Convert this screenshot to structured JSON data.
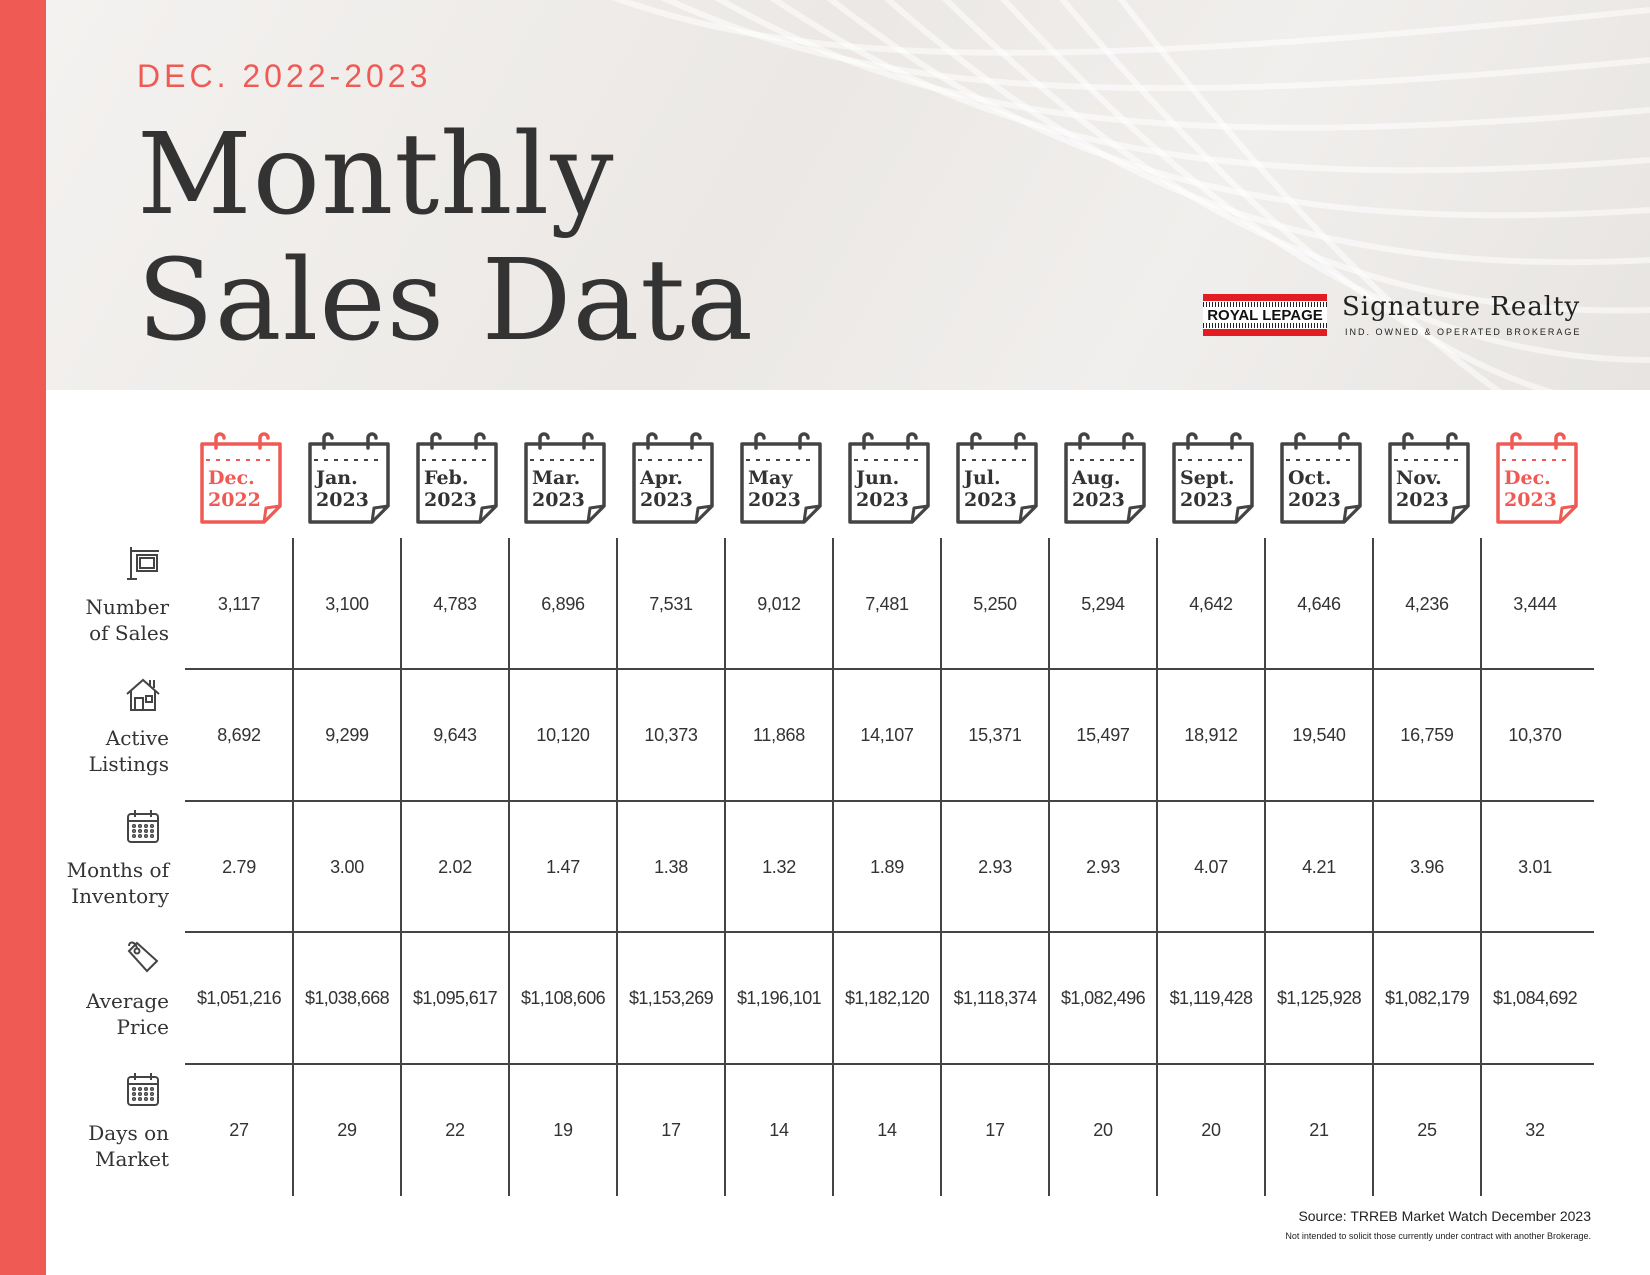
{
  "header": {
    "eyebrow": "DEC. 2022-2023",
    "title_line1": "Monthly",
    "title_line2": "Sales Data"
  },
  "brand": {
    "logo_text": "ROYAL LEPAGE",
    "name": "Signature Realty",
    "tagline": "IND. OWNED & OPERATED BROKERAGE",
    "logo_color": "#e31b23"
  },
  "colors": {
    "accent": "#ef5a55",
    "text": "#333333"
  },
  "months": [
    {
      "month": "Dec.",
      "year": "2022",
      "highlight": true
    },
    {
      "month": "Jan.",
      "year": "2023",
      "highlight": false
    },
    {
      "month": "Feb.",
      "year": "2023",
      "highlight": false
    },
    {
      "month": "Mar.",
      "year": "2023",
      "highlight": false
    },
    {
      "month": "Apr.",
      "year": "2023",
      "highlight": false
    },
    {
      "month": "May",
      "year": "2023",
      "highlight": false
    },
    {
      "month": "Jun.",
      "year": "2023",
      "highlight": false
    },
    {
      "month": "Jul.",
      "year": "2023",
      "highlight": false
    },
    {
      "month": "Aug.",
      "year": "2023",
      "highlight": false
    },
    {
      "month": "Sept.",
      "year": "2023",
      "highlight": false
    },
    {
      "month": "Oct.",
      "year": "2023",
      "highlight": false
    },
    {
      "month": "Nov.",
      "year": "2023",
      "highlight": false
    },
    {
      "month": "Dec.",
      "year": "2023",
      "highlight": true
    }
  ],
  "rows": [
    {
      "label_line1": "Number",
      "label_line2": "of Sales",
      "icon": "sign-post-icon",
      "values": [
        "3,117",
        "3,100",
        "4,783",
        "6,896",
        "7,531",
        "9,012",
        "7,481",
        "5,250",
        "5,294",
        "4,642",
        "4,646",
        "4,236",
        "3,444"
      ]
    },
    {
      "label_line1": "Active",
      "label_line2": "Listings",
      "icon": "house-icon",
      "values": [
        "8,692",
        "9,299",
        "9,643",
        "10,120",
        "10,373",
        "11,868",
        "14,107",
        "15,371",
        "15,497",
        "18,912",
        "19,540",
        "16,759",
        "10,370"
      ]
    },
    {
      "label_line1": "Months of",
      "label_line2": "Inventory",
      "icon": "calendar-icon",
      "values": [
        "2.79",
        "3.00",
        "2.02",
        "1.47",
        "1.38",
        "1.32",
        "1.89",
        "2.93",
        "2.93",
        "4.07",
        "4.21",
        "3.96",
        "3.01"
      ]
    },
    {
      "label_line1": "Average",
      "label_line2": "Price",
      "icon": "price-tag-icon",
      "values": [
        "$1,051,216",
        "$1,038,668",
        "$1,095,617",
        "$1,108,606",
        "$1,153,269",
        "$1,196,101",
        "$1,182,120",
        "$1,118,374",
        "$1,082,496",
        "$1,119,428",
        "$1,125,928",
        "$1,082,179",
        "$1,084,692"
      ]
    },
    {
      "label_line1": "Days on",
      "label_line2": "Market",
      "icon": "calendar-icon",
      "values": [
        "27",
        "29",
        "22",
        "19",
        "17",
        "14",
        "14",
        "17",
        "20",
        "20",
        "21",
        "25",
        "32"
      ]
    }
  ],
  "footer": {
    "source": "Source: TRREB Market Watch December 2023",
    "disclaimer": "Not intended to solicit those currently under contract with another Brokerage."
  }
}
